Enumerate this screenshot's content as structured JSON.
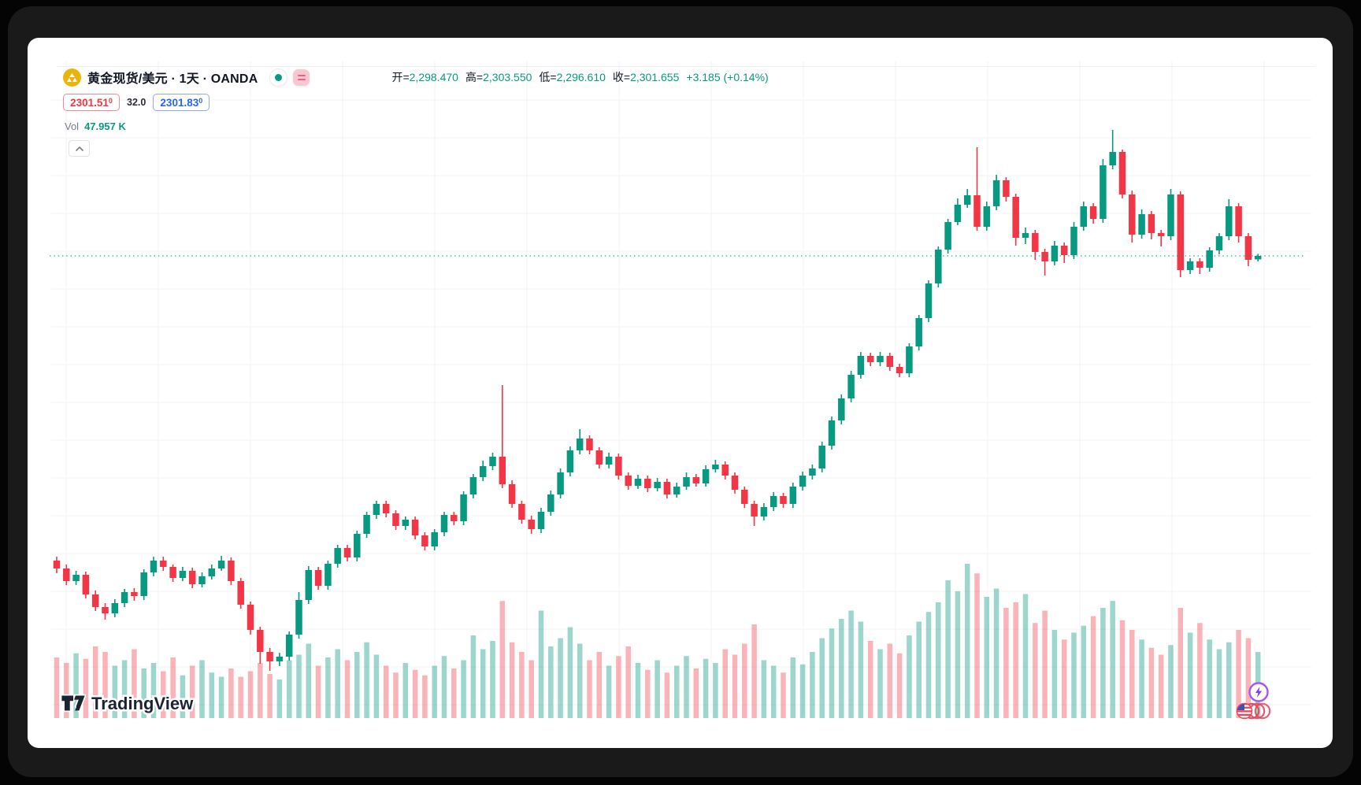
{
  "header": {
    "title": "黄金现货/美元 · 1天 · OANDA",
    "ohlc": {
      "open_label": "开=",
      "open": "2,298.470",
      "high_label": "高=",
      "high": "2,303.550",
      "low_label": "低=",
      "low": "2,296.610",
      "close_label": "收=",
      "close": "2,301.655",
      "change": "+3.185 (+0.14%)"
    },
    "bid": "2301.51",
    "bid_sup": "0",
    "spread": "32.0",
    "ask": "2301.83",
    "ask_sup": "0",
    "vol_label": "Vol",
    "vol_value": "47.957 K"
  },
  "footer": {
    "logo_text": "TradingView"
  },
  "colors": {
    "up": "#089981",
    "down": "#f23645",
    "vol_up": "rgba(8,153,129,0.40)",
    "vol_down": "rgba(242,54,69,0.38)",
    "price_line": "#089981",
    "grid_v": "#f2f2f6",
    "grid_h": "#f7f2f3",
    "bid": "#f23645",
    "ask": "#2962ff",
    "text": "#131722",
    "muted": "#787b86",
    "accent_gold": "#e8b50c"
  },
  "chart_data": {
    "type": "candlestick",
    "symbol": "黄金现货/美元",
    "timeframe": "1天",
    "exchange": "OANDA",
    "legend": [
      "开=2,298.470",
      "高=2,303.550",
      "低=2,296.610",
      "收=2,301.655",
      "+3.185 (+0.14%)"
    ],
    "current_price": 2301.655,
    "price_line": {
      "value": 2301.655,
      "style": "dotted"
    },
    "last_volume_k": 47.957,
    "volume_unit": "K",
    "ylim": [
      1915,
      2425
    ],
    "grid": true,
    "candles_format": [
      "open",
      "high",
      "low",
      "close",
      "volume_k"
    ],
    "candles": [
      [
        2023.02,
        2026.62,
        2011.5,
        2015.82,
        44
      ],
      [
        2015.82,
        2019.42,
        2000.7,
        2004.3,
        40
      ],
      [
        2004.3,
        2013.66,
        2000.7,
        2010.06,
        47
      ],
      [
        2010.06,
        2012.94,
        1988.46,
        1992.06,
        43
      ],
      [
        1992.06,
        1995.66,
        1976.94,
        1980.54,
        52
      ],
      [
        1980.54,
        1984.14,
        1969.02,
        1974.78,
        48
      ],
      [
        1974.78,
        1987.74,
        1971.18,
        1984.14,
        38
      ],
      [
        1984.14,
        1997.1,
        1980.54,
        1994.22,
        42
      ],
      [
        1994.22,
        1997.82,
        1986.3,
        1990.62,
        50
      ],
      [
        1990.62,
        2015.1,
        1987.02,
        2012.22,
        36
      ],
      [
        2012.22,
        2026.62,
        2008.62,
        2023.02,
        40
      ],
      [
        2023.02,
        2026.62,
        2013.66,
        2017.26,
        34
      ],
      [
        2017.26,
        2019.42,
        2003.58,
        2007.18,
        44
      ],
      [
        2007.18,
        2017.26,
        2004.3,
        2013.66,
        31
      ],
      [
        2013.66,
        2016.54,
        1997.82,
        2001.42,
        38
      ],
      [
        2001.42,
        2012.22,
        1998.54,
        2008.62,
        42
      ],
      [
        2008.62,
        2019.42,
        2005.74,
        2015.82,
        33
      ],
      [
        2015.82,
        2027.34,
        2013.66,
        2023.02,
        30
      ],
      [
        2023.02,
        2025.9,
        2000.7,
        2004.3,
        36
      ],
      [
        2004.3,
        2007.18,
        1979.1,
        1982.7,
        30
      ],
      [
        1982.7,
        1985.58,
        1955.34,
        1959.66,
        34
      ],
      [
        1959.66,
        1962.54,
        1928.7,
        1939.5,
        40
      ],
      [
        1939.5,
        1943.1,
        1922.22,
        1930.86,
        32
      ],
      [
        1930.86,
        1938.78,
        1926.54,
        1935.18,
        28
      ],
      [
        1935.18,
        1958.22,
        1931.58,
        1955.34,
        42
      ],
      [
        1955.34,
        1994.22,
        1951.74,
        1987.02,
        46
      ],
      [
        1987.02,
        2017.98,
        1983.42,
        2014.38,
        54
      ],
      [
        2014.38,
        2017.26,
        1996.38,
        1999.98,
        38
      ],
      [
        1999.98,
        2023.02,
        1996.38,
        2020.14,
        44
      ],
      [
        2020.14,
        2037.42,
        2016.54,
        2034.54,
        50
      ],
      [
        2034.54,
        2037.42,
        2022.3,
        2025.9,
        42
      ],
      [
        2025.9,
        2050.38,
        2022.3,
        2047.5,
        48
      ],
      [
        2047.5,
        2067.66,
        2043.9,
        2064.78,
        55
      ],
      [
        2064.78,
        2077.74,
        2061.18,
        2074.86,
        46
      ],
      [
        2074.86,
        2077.74,
        2062.62,
        2066.22,
        38
      ],
      [
        2066.22,
        2069.1,
        2051.1,
        2054.7,
        33
      ],
      [
        2054.7,
        2063.34,
        2051.1,
        2060.46,
        40
      ],
      [
        2060.46,
        2063.34,
        2042.46,
        2046.06,
        35
      ],
      [
        2046.06,
        2048.94,
        2032.38,
        2035.98,
        31
      ],
      [
        2035.98,
        2051.82,
        2032.38,
        2048.94,
        38
      ],
      [
        2048.94,
        2067.66,
        2045.34,
        2064.78,
        45
      ],
      [
        2064.78,
        2067.66,
        2055.42,
        2059.02,
        36
      ],
      [
        2059.02,
        2086.38,
        2055.42,
        2083.5,
        42
      ],
      [
        2083.5,
        2102.22,
        2079.9,
        2099.34,
        60
      ],
      [
        2099.34,
        2114.46,
        2095.74,
        2109.42,
        50
      ],
      [
        2109.42,
        2121.66,
        2105.82,
        2118.06,
        56
      ],
      [
        2118.06,
        2183.58,
        2089.26,
        2092.86,
        85
      ],
      [
        2092.86,
        2096.46,
        2071.26,
        2074.86,
        55
      ],
      [
        2074.86,
        2077.74,
        2056.86,
        2060.46,
        48
      ],
      [
        2060.46,
        2064.06,
        2047.5,
        2051.82,
        42
      ],
      [
        2051.82,
        2071.26,
        2048.22,
        2067.66,
        78
      ],
      [
        2067.66,
        2087.1,
        2064.06,
        2083.5,
        52
      ],
      [
        2083.5,
        2107.26,
        2079.9,
        2103.66,
        58
      ],
      [
        2103.66,
        2127.42,
        2100.06,
        2123.82,
        66
      ],
      [
        2123.82,
        2143.26,
        2120.22,
        2134.62,
        54
      ],
      [
        2134.62,
        2137.5,
        2120.22,
        2123.82,
        42
      ],
      [
        2123.82,
        2126.7,
        2107.26,
        2110.86,
        48
      ],
      [
        2110.86,
        2121.66,
        2107.26,
        2118.06,
        38
      ],
      [
        2118.06,
        2120.94,
        2097.18,
        2100.78,
        45
      ],
      [
        2100.78,
        2103.66,
        2087.82,
        2091.42,
        52
      ],
      [
        2091.42,
        2101.5,
        2088.54,
        2097.9,
        40
      ],
      [
        2097.9,
        2100.78,
        2085.66,
        2089.26,
        35
      ],
      [
        2089.26,
        2098.62,
        2086.38,
        2095.02,
        42
      ],
      [
        2095.02,
        2097.9,
        2079.9,
        2083.5,
        33
      ],
      [
        2083.5,
        2094.3,
        2080.62,
        2090.7,
        38
      ],
      [
        2090.7,
        2103.66,
        2087.82,
        2099.34,
        45
      ],
      [
        2099.34,
        2102.22,
        2090.7,
        2093.58,
        36
      ],
      [
        2093.58,
        2110.14,
        2090.7,
        2106.54,
        43
      ],
      [
        2106.54,
        2115.18,
        2103.66,
        2110.86,
        40
      ],
      [
        2110.86,
        2113.74,
        2097.18,
        2100.78,
        50
      ],
      [
        2100.78,
        2103.66,
        2084.22,
        2087.82,
        46
      ],
      [
        2087.82,
        2090.7,
        2071.26,
        2074.86,
        54
      ],
      [
        2074.86,
        2077.74,
        2054.7,
        2063.34,
        68
      ],
      [
        2063.34,
        2075.58,
        2059.74,
        2071.98,
        42
      ],
      [
        2071.98,
        2085.66,
        2068.38,
        2082.06,
        38
      ],
      [
        2082.06,
        2084.94,
        2071.26,
        2074.86,
        33
      ],
      [
        2074.86,
        2094.3,
        2071.26,
        2090.7,
        44
      ],
      [
        2090.7,
        2104.38,
        2087.1,
        2100.78,
        39
      ],
      [
        2100.78,
        2110.86,
        2097.18,
        2107.26,
        48
      ],
      [
        2107.26,
        2131.74,
        2103.66,
        2128.14,
        58
      ],
      [
        2128.14,
        2154.78,
        2124.54,
        2151.18,
        65
      ],
      [
        2151.18,
        2174.94,
        2147.58,
        2171.34,
        72
      ],
      [
        2171.34,
        2196.54,
        2167.74,
        2192.94,
        78
      ],
      [
        2192.94,
        2213.82,
        2189.34,
        2210.22,
        70
      ],
      [
        2210.22,
        2213.1,
        2200.86,
        2204.46,
        56
      ],
      [
        2204.46,
        2213.82,
        2200.86,
        2210.22,
        50
      ],
      [
        2210.22,
        2213.1,
        2196.54,
        2200.14,
        54
      ],
      [
        2200.14,
        2203.02,
        2190.78,
        2194.38,
        47
      ],
      [
        2194.38,
        2221.74,
        2190.78,
        2218.86,
        60
      ],
      [
        2218.86,
        2247.66,
        2215.26,
        2244.78,
        70
      ],
      [
        2244.78,
        2279.34,
        2241.18,
        2276.46,
        77
      ],
      [
        2276.46,
        2310.3,
        2272.86,
        2307.42,
        84
      ],
      [
        2307.42,
        2335.5,
        2303.82,
        2332.62,
        100
      ],
      [
        2332.62,
        2354.22,
        2329.74,
        2348.46,
        92
      ],
      [
        2348.46,
        2362.86,
        2345.58,
        2357.1,
        112
      ],
      [
        2357.1,
        2401.02,
        2324.7,
        2328.3,
        105
      ],
      [
        2328.3,
        2351.34,
        2324.7,
        2347.02,
        88
      ],
      [
        2347.02,
        2375.82,
        2343.42,
        2370.78,
        94
      ],
      [
        2370.78,
        2373.66,
        2351.34,
        2355.66,
        80
      ],
      [
        2355.66,
        2358.54,
        2311.02,
        2318.22,
        84
      ],
      [
        2318.22,
        2327.58,
        2312.46,
        2322.54,
        90
      ],
      [
        2322.54,
        2325.42,
        2298.06,
        2305.26,
        69
      ],
      [
        2305.26,
        2308.14,
        2283.66,
        2296.62,
        78
      ],
      [
        2296.62,
        2315.34,
        2293.02,
        2311.02,
        64
      ],
      [
        2311.02,
        2313.9,
        2295.18,
        2302.38,
        57
      ],
      [
        2302.38,
        2332.62,
        2298.78,
        2328.3,
        62
      ],
      [
        2328.3,
        2351.34,
        2324.7,
        2347.02,
        67
      ],
      [
        2347.02,
        2349.9,
        2331.18,
        2335.5,
        74
      ],
      [
        2335.5,
        2390.22,
        2331.9,
        2384.46,
        80
      ],
      [
        2384.46,
        2416.86,
        2380.86,
        2396.7,
        85
      ],
      [
        2396.7,
        2398.86,
        2354.22,
        2357.82,
        71
      ],
      [
        2357.82,
        2361.42,
        2313.9,
        2321.1,
        64
      ],
      [
        2321.1,
        2344.14,
        2317.5,
        2339.82,
        57
      ],
      [
        2339.82,
        2342.7,
        2316.78,
        2322.54,
        51
      ],
      [
        2322.54,
        2325.42,
        2310.3,
        2319.66,
        46
      ],
      [
        2319.66,
        2362.86,
        2316.06,
        2357.82,
        53
      ],
      [
        2357.82,
        2360.7,
        2282.22,
        2288.7,
        80
      ],
      [
        2288.7,
        2299.5,
        2285.1,
        2296.62,
        62
      ],
      [
        2296.62,
        2299.5,
        2285.1,
        2290.86,
        69
      ],
      [
        2290.86,
        2309.58,
        2287.26,
        2306.7,
        57
      ],
      [
        2306.7,
        2322.54,
        2303.1,
        2319.66,
        50
      ],
      [
        2319.66,
        2353.5,
        2316.06,
        2347.02,
        55
      ],
      [
        2347.02,
        2349.9,
        2313.9,
        2319.66,
        64
      ],
      [
        2319.66,
        2322.54,
        2292.3,
        2298.06,
        58
      ],
      [
        2298.47,
        2303.55,
        2296.61,
        2301.655,
        47.957
      ]
    ]
  }
}
